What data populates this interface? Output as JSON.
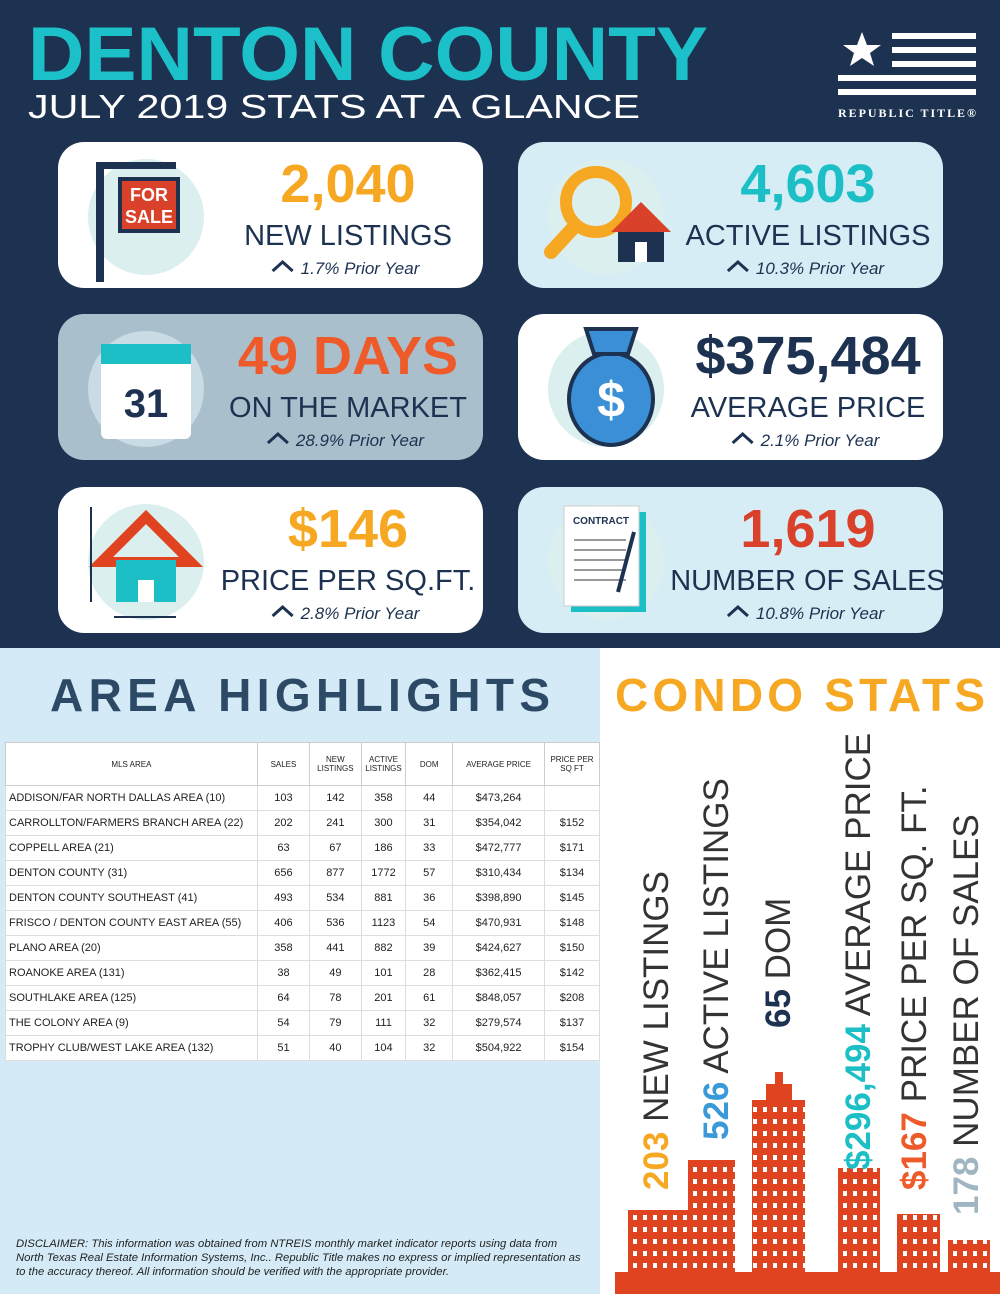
{
  "header": {
    "title": "DENTON COUNTY",
    "subtitle": "JULY 2019 STATS AT A GLANCE",
    "logo": "REPUBLIC TITLE®"
  },
  "stats": [
    {
      "value": "2,040",
      "label": "NEW LISTINGS",
      "change": "1.7% Prior Year",
      "color": "#f7a823",
      "background": "#ffffff",
      "icon_text": [
        "FOR",
        "SALE"
      ]
    },
    {
      "value": "4,603",
      "label": "ACTIVE LISTINGS",
      "change": "10.3% Prior Year",
      "color": "#1cbfc6",
      "background": "#d7edf6"
    },
    {
      "value": "49 DAYS",
      "label": "ON THE MARKET",
      "change": "28.9% Prior Year",
      "color": "#ef5a2a",
      "background": "#a9bfcc",
      "icon_text": [
        "31"
      ]
    },
    {
      "value": "$375,484",
      "label": "AVERAGE PRICE",
      "change": "2.1% Prior Year",
      "color": "#1d3250",
      "background": "#ffffff",
      "icon_text": [
        "$"
      ]
    },
    {
      "value": "$146",
      "label": "PRICE PER SQ.FT.",
      "change": "2.8% Prior Year",
      "color": "#f7a823",
      "background": "#ffffff"
    },
    {
      "value": "1,619",
      "label": "NUMBER OF SALES",
      "change": "10.8% Prior Year",
      "color": "#d9412a",
      "background": "#d7edf6",
      "icon_text": [
        "CONTRACT"
      ]
    }
  ],
  "area": {
    "title": "AREA HIGHLIGHTS"
  },
  "table": {
    "headers": [
      "MLS AREA",
      "SALES",
      "NEW LISTINGS",
      "ACTIVE LISTINGS",
      "DOM",
      "AVERAGE PRICE",
      "PRICE PER SQ FT"
    ],
    "rows": [
      [
        "ADDISON/FAR NORTH DALLAS AREA (10)",
        "103",
        "142",
        "358",
        "44",
        "$473,264",
        null
      ],
      [
        "CARROLLTON/FARMERS BRANCH AREA (22)",
        "202",
        "241",
        "300",
        "31",
        "$354,042",
        "$152"
      ],
      [
        "COPPELL AREA (21)",
        "63",
        "67",
        "186",
        "33",
        "$472,777",
        "$171"
      ],
      [
        "DENTON COUNTY (31)",
        "656",
        "877",
        "1772",
        "57",
        "$310,434",
        "$134"
      ],
      [
        "DENTON COUNTY SOUTHEAST (41)",
        "493",
        "534",
        "881",
        "36",
        "$398,890",
        "$145"
      ],
      [
        "FRISCO / DENTON COUNTY EAST AREA (55)",
        "406",
        "536",
        "1123",
        "54",
        "$470,931",
        "$148"
      ],
      [
        "PLANO AREA (20)",
        "358",
        "441",
        "882",
        "39",
        "$424,627",
        "$150"
      ],
      [
        "ROANOKE AREA (131)",
        "38",
        "49",
        "101",
        "28",
        "$362,415",
        "$142"
      ],
      [
        "SOUTHLAKE AREA (125)",
        "64",
        "78",
        "201",
        "61",
        "$848,057",
        "$208"
      ],
      [
        "THE COLONY AREA (9)",
        "54",
        "79",
        "111",
        "32",
        "$279,574",
        "$137"
      ],
      [
        "TROPHY CLUB/WEST LAKE AREA (132)",
        "51",
        "40",
        "104",
        "32",
        "$504,922",
        "$154"
      ]
    ]
  },
  "condo": {
    "title": "CONDO STATS",
    "items": [
      {
        "value": "203",
        "label": "NEW LISTINGS",
        "color": "#f7a823"
      },
      {
        "value": "526",
        "label": "ACTIVE LISTINGS",
        "color": "#3a9ad9"
      },
      {
        "value": "65",
        "label": "DOM",
        "color": "#1d3250"
      },
      {
        "value": "$296,494",
        "label": "AVERAGE PRICE",
        "color": "#1cbfc6"
      },
      {
        "value": "$167",
        "label": "PRICE PER SQ. FT.",
        "color": "#ef5a2a"
      },
      {
        "value": "178",
        "label": "NUMBER OF SALES",
        "color": "#9fb5c2"
      }
    ]
  },
  "disclaimer": "DISCLAIMER: This information was obtained from NTREIS monthly market indicator reports using data from North Texas Real Estate Information Systems, Inc.. Republic Title makes no express or implied representation as to the accuracy thereof. All information should be verified with the appropriate provider."
}
